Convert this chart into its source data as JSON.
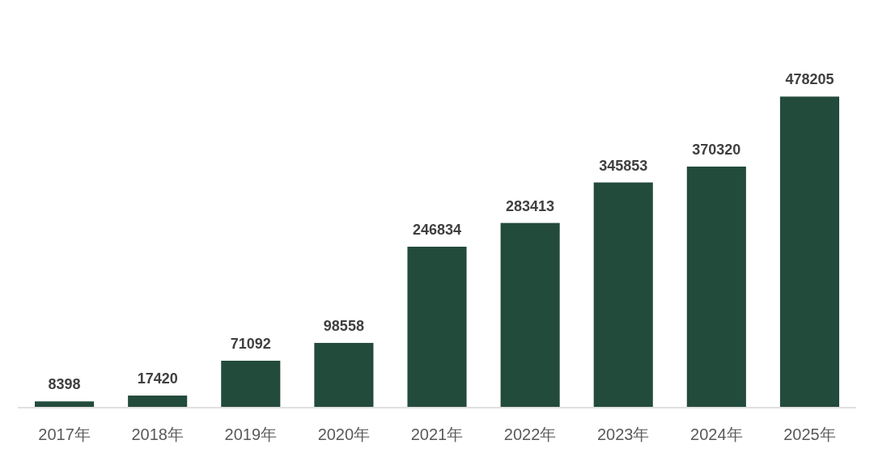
{
  "chart_data": {
    "type": "bar",
    "categories": [
      "2017年",
      "2018年",
      "2019年",
      "2020年",
      "2021年",
      "2022年",
      "2023年",
      "2024年",
      "2025年"
    ],
    "values": [
      8398,
      17420,
      71092,
      98558,
      246834,
      283413,
      345853,
      370320,
      478205
    ],
    "color": "#234b3c",
    "data_labels": true
  }
}
